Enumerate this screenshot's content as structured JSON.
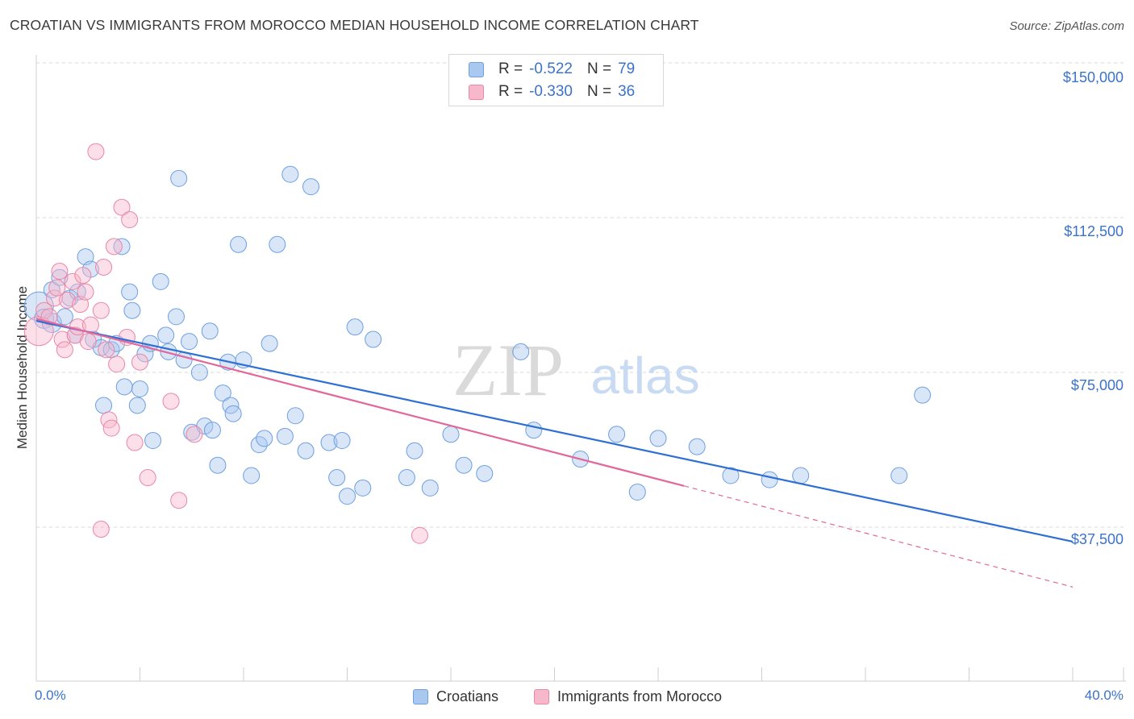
{
  "chart_data": {
    "type": "scatter",
    "title": "CROATIAN VS IMMIGRANTS FROM MOROCCO MEDIAN HOUSEHOLD INCOME CORRELATION CHART",
    "source": "Source: ZipAtlas.com",
    "xlabel": "",
    "ylabel": "Median Household Income",
    "xlim": [
      0,
      40
    ],
    "ylim": [
      0,
      150000
    ],
    "x_tick_labels": [
      "0.0%",
      "40.0%"
    ],
    "y_ticks": [
      37500,
      75000,
      112500,
      150000
    ],
    "y_tick_labels": [
      "$37,500",
      "$75,000",
      "$112,500",
      "$150,000"
    ],
    "grid": true,
    "watermark": {
      "zip": "ZIP",
      "atlas": "atlas"
    },
    "legend": {
      "entries": [
        {
          "label": "R =",
          "r": "-0.522",
          "n_label": "N =",
          "n": "79",
          "color": "#a8c8f0",
          "border": "#6e9fe0"
        },
        {
          "label": "R =",
          "r": "-0.330",
          "n_label": "N =",
          "n": "36",
          "color": "#f8b8cc",
          "border": "#ea86a6"
        }
      ]
    },
    "series": [
      {
        "name": "Croatians",
        "color": "#a8c8f0",
        "stroke": "#6e9fe0",
        "trend": {
          "x0": 0,
          "y0": 87500,
          "x1": 40,
          "y1": 34000,
          "color": "#2e6fd3"
        },
        "points": [
          [
            0.1,
            91000,
            18
          ],
          [
            0.3,
            88000,
            12
          ],
          [
            0.6,
            95000,
            10
          ],
          [
            0.6,
            87000,
            12
          ],
          [
            0.9,
            98000,
            10
          ],
          [
            1.1,
            88500,
            10
          ],
          [
            1.3,
            93000,
            10
          ],
          [
            1.5,
            84000,
            10
          ],
          [
            1.6,
            94500,
            10
          ],
          [
            1.9,
            103000,
            10
          ],
          [
            2.1,
            100000,
            10
          ],
          [
            2.2,
            83000,
            10
          ],
          [
            2.5,
            81000,
            10
          ],
          [
            2.6,
            67000,
            10
          ],
          [
            2.9,
            80500,
            10
          ],
          [
            3.1,
            82000,
            10
          ],
          [
            3.3,
            105500,
            10
          ],
          [
            3.4,
            71500,
            10
          ],
          [
            3.6,
            94500,
            10
          ],
          [
            3.7,
            90000,
            10
          ],
          [
            3.9,
            67000,
            10
          ],
          [
            4.0,
            71000,
            10
          ],
          [
            4.2,
            79500,
            10
          ],
          [
            4.4,
            82000,
            10
          ],
          [
            4.5,
            58500,
            10
          ],
          [
            4.8,
            97000,
            10
          ],
          [
            5.0,
            84000,
            10
          ],
          [
            5.1,
            80000,
            10
          ],
          [
            5.4,
            88500,
            10
          ],
          [
            5.5,
            122000,
            10
          ],
          [
            5.7,
            78000,
            10
          ],
          [
            5.9,
            82500,
            10
          ],
          [
            6.0,
            60500,
            10
          ],
          [
            6.3,
            75000,
            10
          ],
          [
            6.5,
            62000,
            10
          ],
          [
            6.7,
            85000,
            10
          ],
          [
            6.8,
            61000,
            10
          ],
          [
            7.0,
            52500,
            10
          ],
          [
            7.2,
            70000,
            10
          ],
          [
            7.4,
            77500,
            10
          ],
          [
            7.5,
            67000,
            10
          ],
          [
            7.6,
            65000,
            10
          ],
          [
            7.8,
            106000,
            10
          ],
          [
            8.0,
            78000,
            10
          ],
          [
            8.3,
            50000,
            10
          ],
          [
            8.6,
            57500,
            10
          ],
          [
            8.8,
            59000,
            10
          ],
          [
            9.0,
            82000,
            10
          ],
          [
            9.3,
            106000,
            10
          ],
          [
            9.6,
            59500,
            10
          ],
          [
            9.8,
            123000,
            10
          ],
          [
            10.0,
            64500,
            10
          ],
          [
            10.4,
            56000,
            10
          ],
          [
            10.6,
            120000,
            10
          ],
          [
            11.3,
            58000,
            10
          ],
          [
            11.6,
            49500,
            10
          ],
          [
            11.8,
            58500,
            10
          ],
          [
            12.0,
            45000,
            10
          ],
          [
            12.3,
            86000,
            10
          ],
          [
            12.6,
            47000,
            10
          ],
          [
            13.0,
            83000,
            10
          ],
          [
            14.3,
            49500,
            10
          ],
          [
            14.6,
            56000,
            10
          ],
          [
            15.2,
            47000,
            10
          ],
          [
            16.0,
            60000,
            10
          ],
          [
            18.7,
            80000,
            10
          ],
          [
            19.2,
            61000,
            10
          ],
          [
            22.4,
            60000,
            10
          ],
          [
            23.2,
            46000,
            10
          ],
          [
            24.0,
            59000,
            10
          ],
          [
            25.5,
            57000,
            10
          ],
          [
            26.8,
            50000,
            10
          ],
          [
            29.5,
            50000,
            10
          ],
          [
            33.3,
            50000,
            10
          ],
          [
            34.2,
            69500,
            10
          ],
          [
            28.3,
            49000,
            10
          ],
          [
            21.0,
            54000,
            10
          ],
          [
            17.3,
            50500,
            10
          ],
          [
            16.5,
            52500,
            10
          ]
        ]
      },
      {
        "name": "Immigrants from Morocco",
        "color": "#f8b8cc",
        "stroke": "#ea86a6",
        "trend": {
          "x0": 0,
          "y0": 88000,
          "x1": 25,
          "y1": 47500,
          "dash_x1": 40,
          "dash_y1": 23000,
          "color": "#e2679a"
        },
        "points": [
          [
            0.1,
            85000,
            18
          ],
          [
            0.3,
            90000,
            10
          ],
          [
            0.5,
            88500,
            10
          ],
          [
            0.7,
            93000,
            10
          ],
          [
            0.8,
            95500,
            10
          ],
          [
            0.9,
            99500,
            10
          ],
          [
            1.0,
            83000,
            10
          ],
          [
            1.1,
            80500,
            10
          ],
          [
            1.2,
            92500,
            10
          ],
          [
            1.4,
            97000,
            10
          ],
          [
            1.5,
            84000,
            10
          ],
          [
            1.6,
            86000,
            10
          ],
          [
            1.7,
            91500,
            10
          ],
          [
            1.8,
            98500,
            10
          ],
          [
            1.9,
            94500,
            10
          ],
          [
            2.0,
            82500,
            10
          ],
          [
            2.1,
            86500,
            10
          ],
          [
            2.3,
            128500,
            10
          ],
          [
            2.5,
            90000,
            10
          ],
          [
            2.6,
            100500,
            10
          ],
          [
            2.7,
            80500,
            10
          ],
          [
            2.8,
            63500,
            10
          ],
          [
            2.9,
            61500,
            10
          ],
          [
            3.0,
            105500,
            10
          ],
          [
            3.1,
            77000,
            10
          ],
          [
            3.3,
            115000,
            10
          ],
          [
            3.5,
            83500,
            10
          ],
          [
            3.6,
            112000,
            10
          ],
          [
            3.8,
            58000,
            10
          ],
          [
            4.0,
            77500,
            10
          ],
          [
            4.3,
            49500,
            10
          ],
          [
            5.2,
            68000,
            10
          ],
          [
            5.5,
            44000,
            10
          ],
          [
            6.1,
            60000,
            10
          ],
          [
            2.5,
            37000,
            10
          ],
          [
            14.8,
            35500,
            10
          ]
        ]
      }
    ]
  },
  "bottom_legend": [
    "Croatians",
    "Immigrants from Morocco"
  ]
}
